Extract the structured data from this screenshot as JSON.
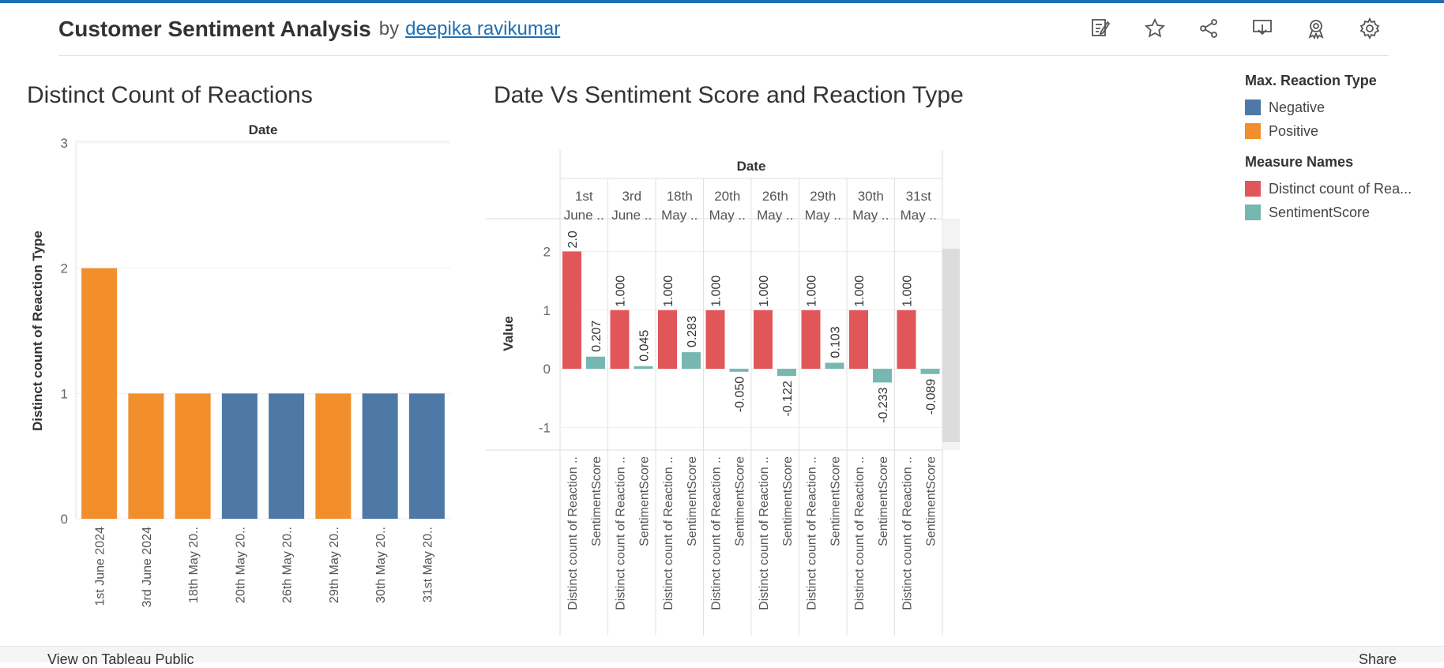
{
  "header": {
    "title": "Customer Sentiment Analysis",
    "by": "by",
    "author": "deepika ravikumar"
  },
  "toolbar": {
    "icons": [
      "edit-icon",
      "star-icon",
      "share-icon",
      "download-icon",
      "award-icon",
      "settings-icon"
    ]
  },
  "colors": {
    "negative": "#4e79a7",
    "positive": "#f28e2b",
    "distinct_count": "#e15759",
    "sentiment": "#76b7b2",
    "accent": "#1f6fb2"
  },
  "chart1": {
    "title": "Distinct Count of Reactions"
  },
  "chart2": {
    "title": "Date Vs  Sentiment Score and Reaction Type"
  },
  "legend": {
    "reaction_title": "Max. Reaction Type",
    "reaction_items": [
      "Negative",
      "Positive"
    ],
    "measure_title": "Measure Names",
    "measure_items": [
      "Distinct count of Rea...",
      "SentimentScore"
    ]
  },
  "chart_data": [
    {
      "type": "bar",
      "title": "Distinct Count of Reactions",
      "header": "Date",
      "ylabel": "Distinct count of Reaction Type",
      "ylim": [
        0,
        3
      ],
      "yticks": [
        0,
        1,
        2,
        3
      ],
      "grid": true,
      "categories": [
        "1st June 2024",
        "3rd June 2024",
        "18th May 20..",
        "20th May 20..",
        "26th May 20..",
        "29th May 20..",
        "30th May 20..",
        "31st May 20.."
      ],
      "values": [
        2,
        1,
        1,
        1,
        1,
        1,
        1,
        1
      ],
      "reaction_type": [
        "Positive",
        "Positive",
        "Positive",
        "Negative",
        "Negative",
        "Positive",
        "Negative",
        "Negative"
      ]
    },
    {
      "type": "bar",
      "title": "Date Vs  Sentiment Score and Reaction Type",
      "header": "Date",
      "ylabel": "Value",
      "ylim": [
        -1.25,
        2.45
      ],
      "yticks": [
        -1,
        0,
        1,
        2
      ],
      "grid": true,
      "dates": [
        {
          "line1": "1st",
          "line2": "June .."
        },
        {
          "line1": "3rd",
          "line2": "June .."
        },
        {
          "line1": "18th",
          "line2": "May .."
        },
        {
          "line1": "20th",
          "line2": "May .."
        },
        {
          "line1": "26th",
          "line2": "May .."
        },
        {
          "line1": "29th",
          "line2": "May .."
        },
        {
          "line1": "30th",
          "line2": "May .."
        },
        {
          "line1": "31st",
          "line2": "May .."
        }
      ],
      "measures": [
        "Distinct count of Reaction ..",
        "SentimentScore"
      ],
      "series": [
        {
          "name": "Distinct count of Reaction Type",
          "values": [
            2,
            1,
            1,
            1,
            1,
            1,
            1,
            1
          ],
          "labels": [
            "2.0",
            "1.000",
            "1.000",
            "1.000",
            "1.000",
            "1.000",
            "1.000",
            "1.000"
          ]
        },
        {
          "name": "SentimentScore",
          "values": [
            0.207,
            0.045,
            0.283,
            -0.05,
            -0.122,
            0.103,
            -0.233,
            -0.089
          ],
          "labels": [
            "0.207",
            "0.045",
            "0.283",
            "-0.050",
            "-0.122",
            "0.103",
            "-0.233",
            "-0.089"
          ]
        }
      ]
    }
  ],
  "footer": {
    "view_label": "View on Tableau Public",
    "share_label": "Share"
  }
}
